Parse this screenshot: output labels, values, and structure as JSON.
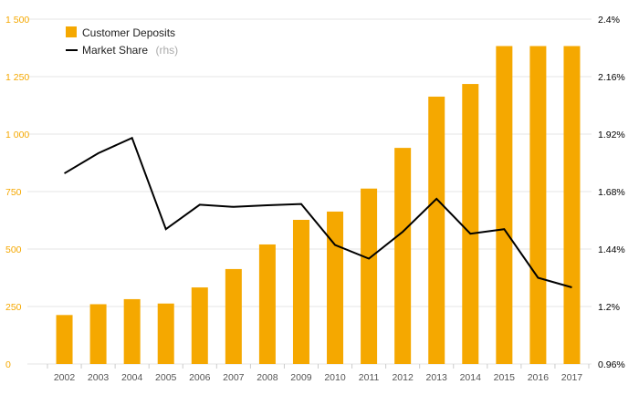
{
  "chart_data": {
    "type": "bar",
    "categories": [
      "2002",
      "2003",
      "2004",
      "2005",
      "2006",
      "2007",
      "2008",
      "2009",
      "2010",
      "2011",
      "2012",
      "2013",
      "2014",
      "2015",
      "2016",
      "2017"
    ],
    "series": [
      {
        "name": "Customer Deposits",
        "type": "bar",
        "axis": "left",
        "values": [
          213,
          260,
          282,
          263,
          333,
          413,
          520,
          627,
          663,
          763,
          940,
          1163,
          1218,
          1383,
          1383,
          1383
        ]
      },
      {
        "name": "Market Share",
        "name_suffix": "(rhs)",
        "type": "line",
        "axis": "right",
        "values": [
          1.756,
          1.84,
          1.904,
          1.523,
          1.625,
          1.616,
          1.623,
          1.628,
          1.457,
          1.4,
          1.512,
          1.65,
          1.504,
          1.523,
          1.32,
          1.28
        ]
      }
    ],
    "y_left": {
      "ylim": [
        0,
        1500
      ],
      "ticks": [
        0,
        250,
        500,
        750,
        1000,
        1250,
        1500
      ],
      "tick_labels": [
        "0",
        "250",
        "500",
        "750",
        "1 000",
        "1 250",
        "1 500"
      ]
    },
    "y_right": {
      "ylim": [
        0.96,
        2.4
      ],
      "ticks": [
        0.96,
        1.2,
        1.44,
        1.68,
        1.92,
        2.16,
        2.4
      ],
      "tick_labels": [
        "0.96%",
        "1.2%",
        "1.44%",
        "1.68%",
        "1.92%",
        "2.16%",
        "2.4%"
      ]
    },
    "grid": true,
    "legend_position": "top-left",
    "colors": {
      "bar": "#f5a800",
      "line": "#000000",
      "grid": "#e6e6e6",
      "left_tick": "#f5a800",
      "right_tick": "#000000"
    }
  }
}
